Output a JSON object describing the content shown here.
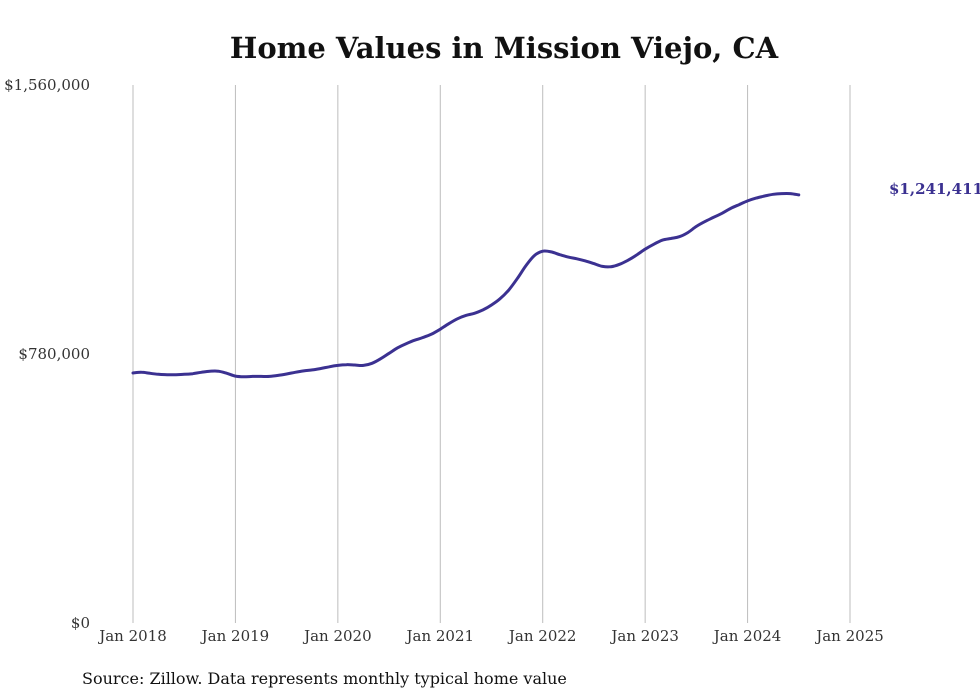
{
  "chart_data": {
    "type": "line",
    "title": "Home Values in Mission Viejo, CA",
    "xlabel": "",
    "ylabel": "",
    "ylim": [
      0,
      1560000
    ],
    "y_ticks": [
      {
        "value": 0,
        "label": "$0"
      },
      {
        "value": 780000,
        "label": "$780,000"
      },
      {
        "value": 1560000,
        "label": "$1,560,000"
      }
    ],
    "x_ticks": [
      {
        "value": "2018-01",
        "label": "Jan 2018"
      },
      {
        "value": "2019-01",
        "label": "Jan 2019"
      },
      {
        "value": "2020-01",
        "label": "Jan 2020"
      },
      {
        "value": "2021-01",
        "label": "Jan 2021"
      },
      {
        "value": "2022-01",
        "label": "Jan 2022"
      },
      {
        "value": "2023-01",
        "label": "Jan 2023"
      },
      {
        "value": "2024-01",
        "label": "Jan 2024"
      },
      {
        "value": "2025-01",
        "label": "Jan 2025"
      }
    ],
    "grid": "vertical",
    "series": [
      {
        "color": "#3b3191",
        "points": [
          [
            "2018-01",
            725000
          ],
          [
            "2018-02",
            727000
          ],
          [
            "2018-03",
            724000
          ],
          [
            "2018-04",
            721000
          ],
          [
            "2018-05",
            720000
          ],
          [
            "2018-06",
            720000
          ],
          [
            "2018-07",
            721000
          ],
          [
            "2018-08",
            723000
          ],
          [
            "2018-09",
            727000
          ],
          [
            "2018-10",
            730000
          ],
          [
            "2018-11",
            730000
          ],
          [
            "2018-12",
            724000
          ],
          [
            "2019-01",
            716000
          ],
          [
            "2019-02",
            714000
          ],
          [
            "2019-03",
            715000
          ],
          [
            "2019-04",
            715000
          ],
          [
            "2019-05",
            715000
          ],
          [
            "2019-06",
            718000
          ],
          [
            "2019-07",
            722000
          ],
          [
            "2019-08",
            727000
          ],
          [
            "2019-09",
            731000
          ],
          [
            "2019-10",
            734000
          ],
          [
            "2019-11",
            738000
          ],
          [
            "2019-12",
            743000
          ],
          [
            "2020-01",
            747000
          ],
          [
            "2020-02",
            749000
          ],
          [
            "2020-03",
            748000
          ],
          [
            "2020-04",
            747000
          ],
          [
            "2020-05",
            753000
          ],
          [
            "2020-06",
            766000
          ],
          [
            "2020-07",
            782000
          ],
          [
            "2020-08",
            798000
          ],
          [
            "2020-09",
            810000
          ],
          [
            "2020-10",
            820000
          ],
          [
            "2020-11",
            828000
          ],
          [
            "2020-12",
            838000
          ],
          [
            "2021-01",
            852000
          ],
          [
            "2021-02",
            868000
          ],
          [
            "2021-03",
            882000
          ],
          [
            "2021-04",
            892000
          ],
          [
            "2021-05",
            898000
          ],
          [
            "2021-06",
            908000
          ],
          [
            "2021-07",
            922000
          ],
          [
            "2021-08",
            940000
          ],
          [
            "2021-09",
            965000
          ],
          [
            "2021-10",
            998000
          ],
          [
            "2021-11",
            1035000
          ],
          [
            "2021-12",
            1065000
          ],
          [
            "2022-01",
            1078000
          ],
          [
            "2022-02",
            1076000
          ],
          [
            "2022-03",
            1068000
          ],
          [
            "2022-04",
            1061000
          ],
          [
            "2022-05",
            1056000
          ],
          [
            "2022-06",
            1050000
          ],
          [
            "2022-07",
            1042000
          ],
          [
            "2022-08",
            1034000
          ],
          [
            "2022-09",
            1033000
          ],
          [
            "2022-10",
            1040000
          ],
          [
            "2022-11",
            1052000
          ],
          [
            "2022-12",
            1067000
          ],
          [
            "2023-01",
            1084000
          ],
          [
            "2023-02",
            1098000
          ],
          [
            "2023-03",
            1110000
          ],
          [
            "2023-04",
            1115000
          ],
          [
            "2023-05",
            1120000
          ],
          [
            "2023-06",
            1132000
          ],
          [
            "2023-07",
            1150000
          ],
          [
            "2023-08",
            1164000
          ],
          [
            "2023-09",
            1176000
          ],
          [
            "2023-10",
            1188000
          ],
          [
            "2023-11",
            1202000
          ],
          [
            "2023-12",
            1213000
          ],
          [
            "2024-01",
            1224000
          ],
          [
            "2024-02",
            1232000
          ],
          [
            "2024-03",
            1238000
          ],
          [
            "2024-04",
            1243000
          ],
          [
            "2024-05",
            1245000
          ],
          [
            "2024-06",
            1245000
          ],
          [
            "2024-07",
            1241411
          ]
        ]
      }
    ],
    "end_label": "$1,241,411",
    "source": "Source: Zillow. Data represents monthly typical home value"
  }
}
